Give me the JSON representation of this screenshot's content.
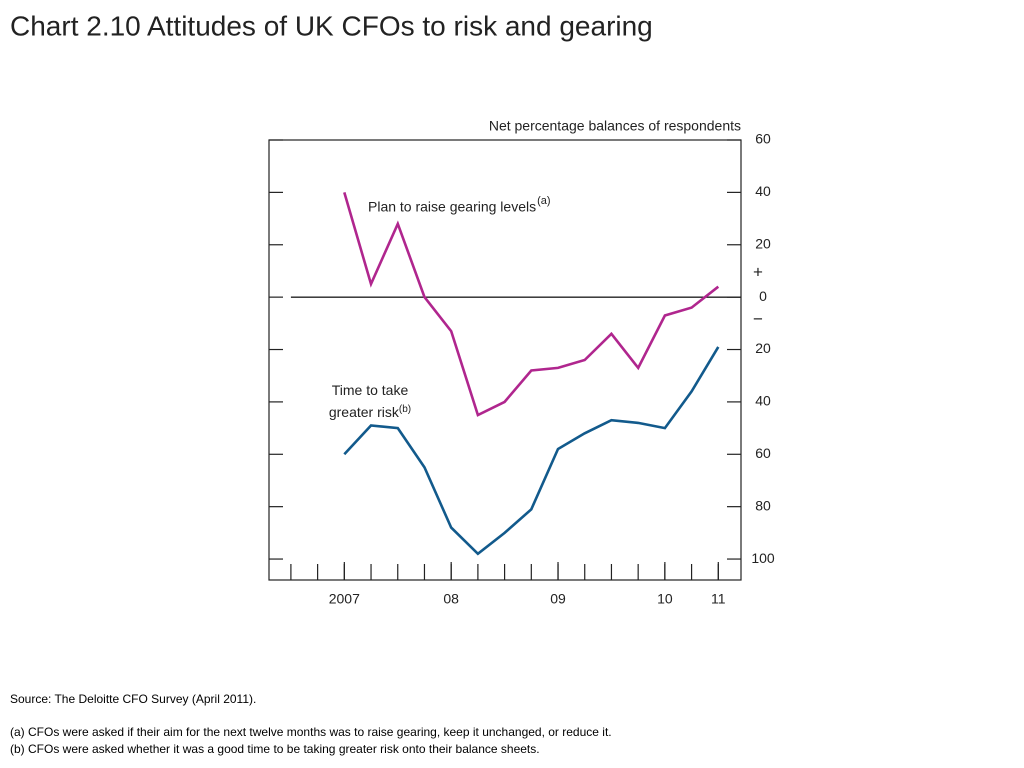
{
  "header": {
    "title": "Chart 2.10  Attitudes of UK CFOs to risk and gearing"
  },
  "chart_data": {
    "type": "line",
    "axis_label": "Net percentage balances of respondents",
    "x": [
      2,
      3,
      4,
      5,
      6,
      7,
      8,
      9,
      10,
      11,
      12,
      13,
      14,
      15,
      16
    ],
    "xlim": [
      -0.82,
      16.85
    ],
    "xticks": [
      {
        "value": 2,
        "label": "2007"
      },
      {
        "value": 6,
        "label": "08"
      },
      {
        "value": 10,
        "label": "09"
      },
      {
        "value": 14,
        "label": "10"
      },
      {
        "value": 16,
        "label": "11"
      }
    ],
    "ylim": [
      -108,
      60
    ],
    "yticks": [
      60,
      40,
      20,
      0,
      {
        "value": -20,
        "label": "20"
      },
      {
        "value": -40,
        "label": "40"
      },
      {
        "value": -60,
        "label": "60"
      },
      {
        "value": -80,
        "label": "80"
      },
      {
        "value": -100,
        "label": "100"
      }
    ],
    "sign_labels": [
      "+",
      "−"
    ],
    "zero_line": true,
    "series": [
      {
        "name": "Plan to raise gearing levels",
        "note": "(a)",
        "color": "#b0268e",
        "values": [
          40,
          5,
          28,
          0,
          -13,
          -45,
          -40,
          -28,
          -27,
          -24,
          -14,
          -27,
          -7,
          -4,
          4
        ]
      },
      {
        "name": "Time to take greater risk",
        "note": "(b)",
        "color": "#125a8c",
        "values": [
          -60,
          -49,
          -50,
          -65,
          -88,
          -98,
          -90,
          -81,
          -58,
          -52,
          -47,
          -48,
          -50,
          -36,
          -19
        ]
      }
    ]
  },
  "footer": {
    "source": "Source:  The Deloitte CFO Survey (April 2011).",
    "notes": [
      "(a)  CFOs were asked if their aim for the next twelve months was to raise gearing, keep it unchanged, or reduce it.",
      "(b)  CFOs were asked whether it was a good time to be taking greater risk onto their balance sheets."
    ]
  }
}
